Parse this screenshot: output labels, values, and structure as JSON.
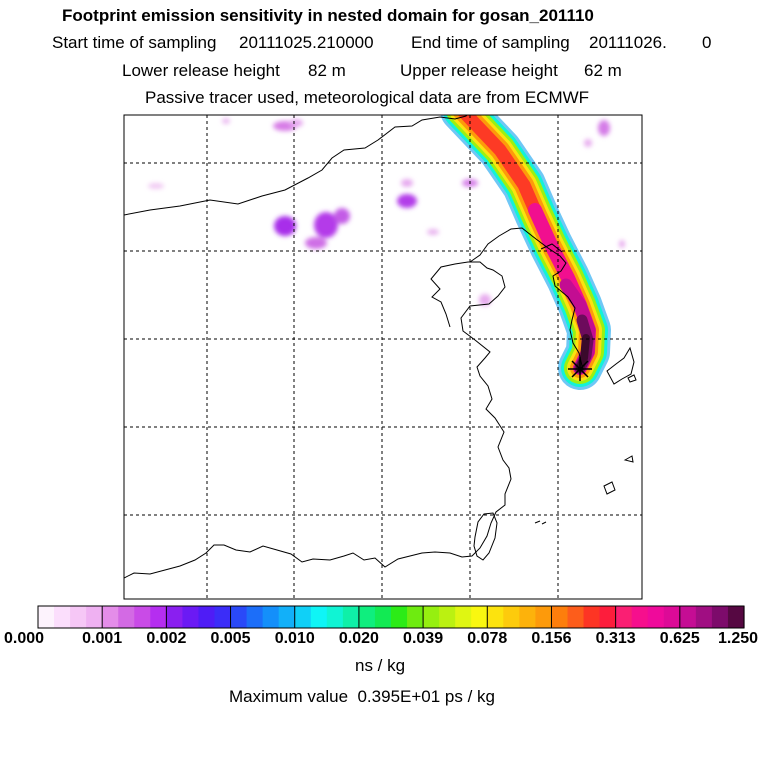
{
  "header": {
    "title": "Footprint emission sensitivity in nested domain for gosan_201110",
    "start_label": "Start time of sampling",
    "start_value": "20111025.210000",
    "end_label": "End time of sampling",
    "end_value": "20111026.",
    "end_suffix": "0",
    "lower_label": "Lower release height",
    "lower_value": "82 m",
    "upper_label": "Upper release height",
    "upper_value": "62 m",
    "tracer_note": "Passive tracer used, meteorological data are from ECMWF"
  },
  "colorbar": {
    "colors": [
      "#fdf3fd",
      "#fbdefc",
      "#f6c7f6",
      "#efb1f2",
      "#e48de9",
      "#d36ae4",
      "#c94be7",
      "#b52ef0",
      "#8a1ff0",
      "#6b1af4",
      "#4f1cf6",
      "#3b2df8",
      "#2a49f8",
      "#1c6ef9",
      "#148ffa",
      "#12b0f9",
      "#10d0f7",
      "#0ff5f6",
      "#10f4d4",
      "#0ff0a8",
      "#0fee7e",
      "#12ea53",
      "#2ceb17",
      "#6eeb10",
      "#96ef10",
      "#bbf111",
      "#dff612",
      "#f9f710",
      "#fce30e",
      "#fdcb0c",
      "#fdb20b",
      "#fd9a0b",
      "#fd7e0c",
      "#fd5d1b",
      "#fd3524",
      "#fd1d3c",
      "#fa1f73",
      "#f60f8d",
      "#ef0a9b",
      "#dd0a97",
      "#c50d94",
      "#a00e82",
      "#7d0b6b",
      "#560842"
    ],
    "tick_labels": [
      "0.000",
      "0.001",
      "0.002",
      "0.005",
      "0.010",
      "0.020",
      "0.039",
      "0.078",
      "0.156",
      "0.313",
      "0.625",
      "1.250"
    ],
    "unit": "ns / kg"
  },
  "max_value_text": "Maximum value  0.395E+01 ps / kg"
}
